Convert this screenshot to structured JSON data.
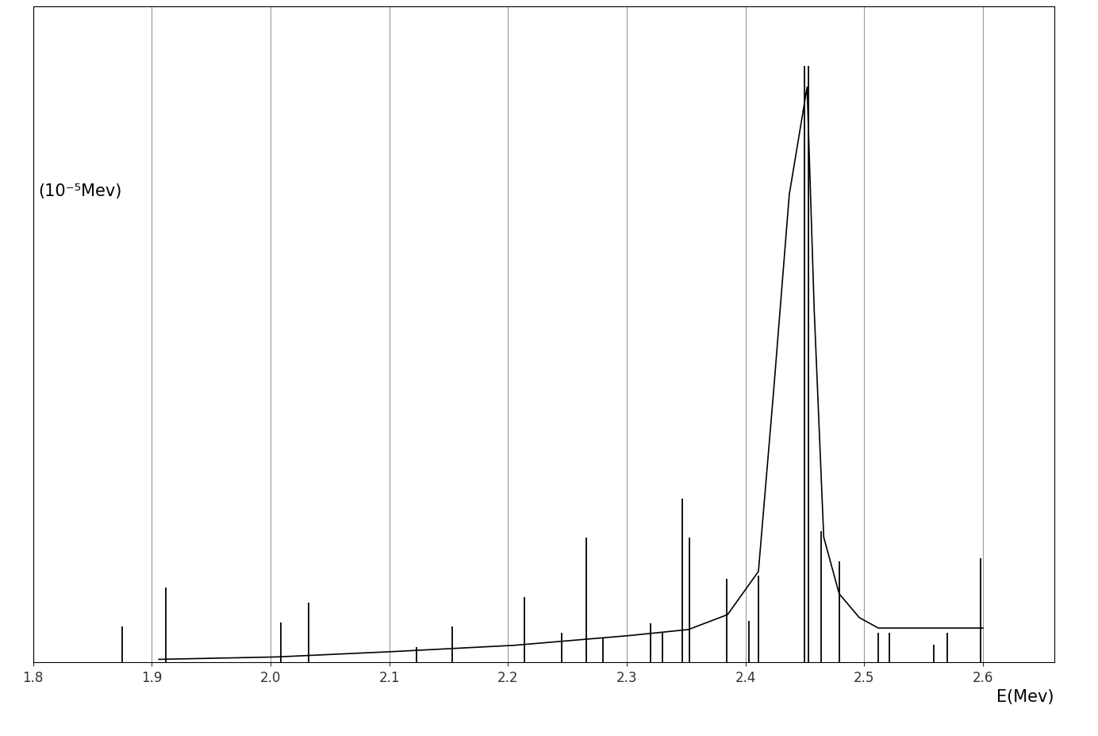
{
  "chart_data": {
    "type": "line",
    "y_label": "(10⁻⁵Mev)",
    "x_label": "E(Mev)",
    "xlim": [
      1.8,
      2.66
    ],
    "xticks": [
      1.8,
      1.9,
      2.0,
      2.1,
      2.2,
      2.3,
      2.4,
      2.5,
      2.6
    ],
    "ylim": [
      0,
      22
    ],
    "yticks": [],
    "tick_labels": "x",
    "grid": true,
    "series": [
      {
        "type": "stem",
        "color": "#000000",
        "x": [
          1.875,
          1.912,
          2.009,
          2.032,
          2.123,
          2.153,
          2.214,
          2.245,
          2.266,
          2.28,
          2.32,
          2.33,
          2.347,
          2.353,
          2.384,
          2.403,
          2.411,
          2.45,
          2.453,
          2.464,
          2.479,
          2.512,
          2.521,
          2.559,
          2.57,
          2.598
        ],
        "values": [
          1.2,
          2.5,
          1.35,
          2.0,
          0.5,
          1.2,
          2.2,
          1.0,
          4.2,
          0.8,
          1.3,
          1.0,
          5.5,
          4.2,
          2.8,
          1.4,
          2.9,
          20.0,
          20.0,
          4.4,
          3.4,
          1.0,
          1.0,
          0.6,
          1.0,
          3.5
        ]
      },
      {
        "type": "line",
        "color": "#000000",
        "line_style": "solid",
        "x": [
          1.906,
          2.005,
          2.103,
          2.205,
          2.303,
          2.352,
          2.385,
          2.411,
          2.424,
          2.437,
          2.452,
          2.458,
          2.466,
          2.479,
          2.496,
          2.512,
          2.6
        ],
        "values": [
          0.1,
          0.18,
          0.36,
          0.57,
          0.9,
          1.1,
          1.6,
          3.05,
          9.2,
          15.7,
          19.3,
          11.8,
          4.2,
          2.3,
          1.5,
          1.15,
          1.15
        ]
      }
    ]
  }
}
